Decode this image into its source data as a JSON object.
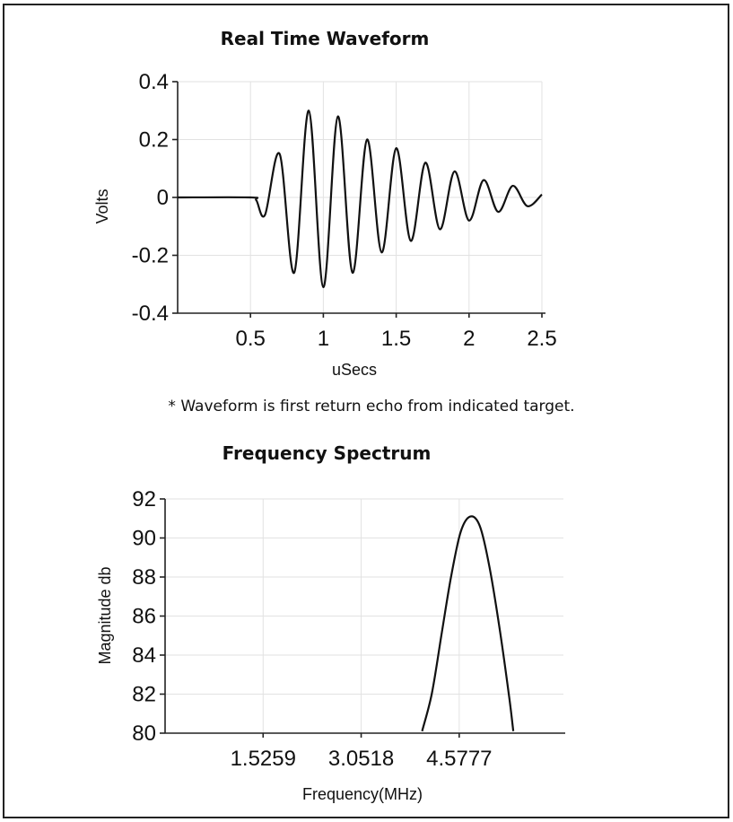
{
  "chart_data": [
    {
      "type": "line",
      "title": "Real Time Waveform",
      "xlabel": "uSecs",
      "ylabel": "Volts",
      "xlim": [
        0,
        2.5
      ],
      "ylim": [
        -0.4,
        0.4
      ],
      "x_ticks": [
        "0.5",
        "1",
        "1.5",
        "2",
        "2.5"
      ],
      "x_tick_values": [
        0.5,
        1,
        1.5,
        2,
        2.5
      ],
      "y_ticks": [
        "0.4",
        "0.2",
        "0",
        "-0.2",
        "-0.4"
      ],
      "y_tick_values": [
        0.4,
        0.2,
        0,
        -0.2,
        -0.4
      ],
      "grid": true,
      "annotation": "* Waveform is first return echo from indicated target.",
      "series": [
        {
          "x": [
            0,
            0.5,
            0.54,
            0.6,
            0.7,
            0.8,
            0.9,
            1.0,
            1.1,
            1.2,
            1.3,
            1.4,
            1.5,
            1.6,
            1.7,
            1.8,
            1.9,
            2.0,
            2.1,
            2.2,
            2.3,
            2.4,
            2.5
          ],
          "y": [
            0,
            0,
            -0.01,
            -0.06,
            0.15,
            -0.26,
            0.3,
            -0.31,
            0.28,
            -0.26,
            0.2,
            -0.19,
            0.17,
            -0.15,
            0.12,
            -0.11,
            0.09,
            -0.08,
            0.06,
            -0.05,
            0.04,
            -0.03,
            0.01
          ]
        }
      ]
    },
    {
      "type": "line",
      "title": "Frequency Spectrum",
      "xlabel": "Frequency(MHz)",
      "ylabel": "Magnitude db",
      "xlim": [
        0,
        6.2
      ],
      "ylim": [
        80,
        92
      ],
      "x_ticks": [
        "1.5259",
        "3.0518",
        "4.5777"
      ],
      "x_tick_values": [
        1.5259,
        3.0518,
        4.5777
      ],
      "y_ticks": [
        "92",
        "90",
        "88",
        "86",
        "84",
        "82",
        "80"
      ],
      "y_tick_values": [
        92,
        90,
        88,
        86,
        84,
        82,
        80
      ],
      "grid": true,
      "series": [
        {
          "x": [
            4.0,
            4.15,
            4.3,
            4.45,
            4.6,
            4.75,
            4.9,
            5.05,
            5.2,
            5.35,
            5.42
          ],
          "y": [
            80.1,
            82.0,
            85.0,
            88.0,
            90.3,
            91.1,
            90.6,
            88.5,
            85.5,
            82.0,
            80.1
          ]
        }
      ]
    }
  ]
}
